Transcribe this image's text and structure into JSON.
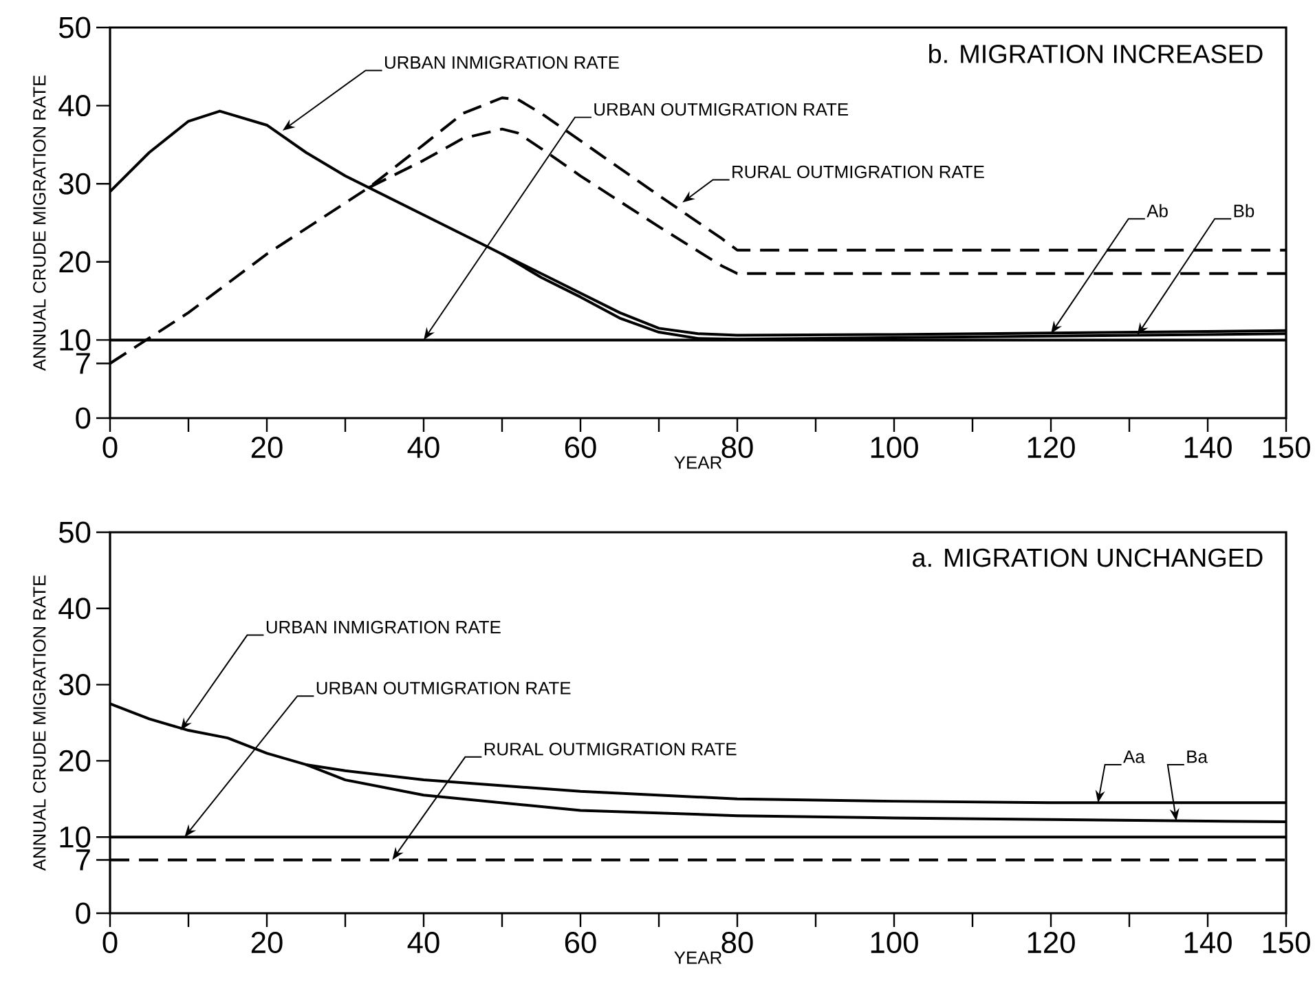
{
  "chart_data": [
    {
      "type": "line",
      "title": "b. MIGRATION INCREASED",
      "xlabel": "YEAR",
      "ylabel": "ANNUAL CRUDE MIGRATION RATE",
      "xlim": [
        0,
        150
      ],
      "ylim": [
        0,
        50
      ],
      "xticks": [
        0,
        {
          "value": 10,
          "label": null
        },
        20,
        {
          "value": 30,
          "label": null
        },
        40,
        {
          "value": 50,
          "label": null
        },
        60,
        {
          "value": 70,
          "label": null
        },
        80,
        {
          "value": 90,
          "label": null
        },
        100,
        {
          "value": 110,
          "label": null
        },
        120,
        {
          "value": 130,
          "label": null
        },
        140,
        150
      ],
      "yticks": [
        0,
        7,
        10,
        20,
        30,
        40,
        50
      ],
      "series": [
        {
          "color": "#000000",
          "line_style": "solid",
          "x": [
            0,
            5,
            10,
            14,
            20,
            25,
            30,
            35,
            40,
            45,
            48,
            50,
            55,
            60,
            65,
            70,
            75,
            80,
            100,
            120,
            150
          ],
          "values": [
            29,
            34,
            38,
            39.3,
            37.5,
            34,
            31,
            28.5,
            26,
            23.5,
            22,
            21,
            18.5,
            16,
            13.5,
            11.5,
            10.8,
            10.6,
            10.7,
            10.9,
            11.2
          ]
        },
        {
          "color": "#000000",
          "line_style": "solid",
          "x": [
            50,
            55,
            60,
            65,
            70,
            75,
            80,
            100,
            120,
            150
          ],
          "values": [
            21,
            18,
            15.5,
            12.8,
            11,
            10.2,
            10.1,
            10.3,
            10.5,
            10.8
          ]
        },
        {
          "color": "#000000",
          "line_style": "solid",
          "x": [
            0,
            150
          ],
          "values": [
            10,
            10
          ]
        },
        {
          "color": "#000000",
          "line_style": "dashed",
          "x": [
            0,
            10,
            20,
            33,
            40,
            45,
            50,
            52,
            55,
            60,
            70,
            78,
            80,
            100,
            150
          ],
          "values": [
            7,
            13.5,
            21,
            29.5,
            35,
            39,
            41,
            40.8,
            39,
            35.5,
            28.5,
            23,
            21.5,
            21.5,
            21.5
          ]
        },
        {
          "color": "#000000",
          "line_style": "dashed",
          "x": [
            33,
            40,
            45,
            50,
            52,
            55,
            60,
            70,
            78,
            80,
            100,
            150
          ],
          "values": [
            29.5,
            33,
            35.8,
            37,
            36.5,
            34.5,
            31,
            24.5,
            19.5,
            18.5,
            18.5,
            18.5
          ]
        }
      ],
      "annotations": [
        {
          "text": "URBAN INMIGRATION RATE",
          "x": 22,
          "y": 36.8
        },
        {
          "text": "URBAN OUTMIGRATION RATE",
          "x": 40,
          "y": 10
        },
        {
          "text": "RURAL OUTMIGRATION RATE",
          "x": 73,
          "y": 27.6
        },
        {
          "text": "Ab",
          "x": 120,
          "y": 10.8
        },
        {
          "text": "Bb",
          "x": 131,
          "y": 10.6
        }
      ]
    },
    {
      "type": "line",
      "title": "a. MIGRATION UNCHANGED",
      "xlabel": "YEAR",
      "ylabel": "ANNUAL CRUDE MIGRATION RATE",
      "xlim": [
        0,
        150
      ],
      "ylim": [
        0,
        50
      ],
      "xticks": [
        0,
        {
          "value": 10,
          "label": null
        },
        20,
        {
          "value": 30,
          "label": null
        },
        40,
        {
          "value": 50,
          "label": null
        },
        60,
        {
          "value": 70,
          "label": null
        },
        80,
        {
          "value": 90,
          "label": null
        },
        100,
        {
          "value": 110,
          "label": null
        },
        120,
        {
          "value": 130,
          "label": null
        },
        140,
        150
      ],
      "yticks": [
        0,
        7,
        10,
        20,
        30,
        40,
        50
      ],
      "series": [
        {
          "color": "#000000",
          "line_style": "solid",
          "x": [
            0,
            5,
            10,
            15,
            20,
            25,
            30,
            40,
            60,
            80,
            100,
            120,
            150
          ],
          "values": [
            27.5,
            25.5,
            24,
            23,
            21,
            19.5,
            18.7,
            17.5,
            16,
            15,
            14.7,
            14.5,
            14.5
          ]
        },
        {
          "color": "#000000",
          "line_style": "solid",
          "x": [
            25,
            30,
            35,
            40,
            60,
            80,
            100,
            120,
            150
          ],
          "values": [
            19.5,
            17.5,
            16.5,
            15.5,
            13.5,
            12.8,
            12.5,
            12.3,
            12
          ]
        },
        {
          "color": "#000000",
          "line_style": "solid",
          "x": [
            0,
            150
          ],
          "values": [
            10,
            10
          ]
        },
        {
          "color": "#000000",
          "line_style": "dashed",
          "x": [
            0,
            150
          ],
          "values": [
            7,
            7
          ]
        }
      ],
      "annotations": [
        {
          "text": "URBAN INMIGRATION RATE",
          "x": 9,
          "y": 24
        },
        {
          "text": "URBAN OUTMIGRATION RATE",
          "x": 9.5,
          "y": 10
        },
        {
          "text": "RURAL OUTMIGRATION RATE",
          "x": 36,
          "y": 7
        },
        {
          "text": "Aa",
          "x": 126,
          "y": 14.5
        },
        {
          "text": "Ba",
          "x": 136,
          "y": 12.1
        }
      ]
    }
  ]
}
